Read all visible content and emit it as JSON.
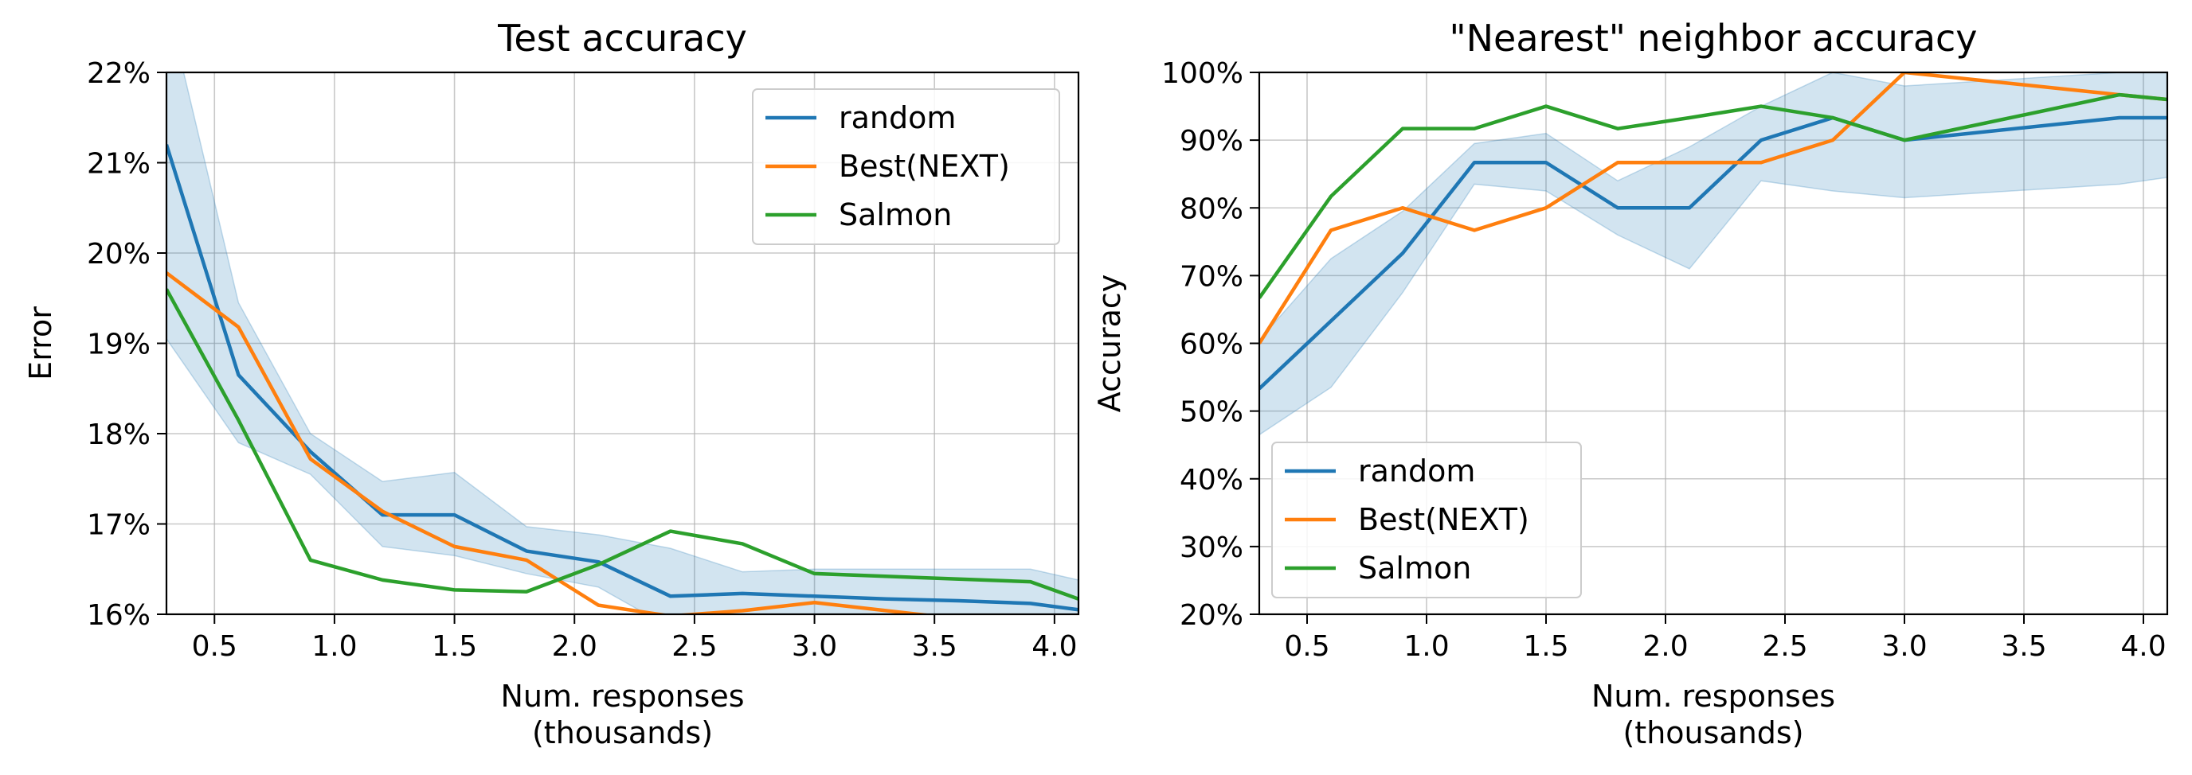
{
  "colors": {
    "random": "#1f77b4",
    "best_next": "#ff7f0e",
    "salmon": "#2ca02c",
    "band": "#1f77b4"
  },
  "chart_data": [
    {
      "type": "line",
      "title": "Test accuracy",
      "xlabel": [
        "Num. responses",
        "(thousands)"
      ],
      "ylabel": "Error",
      "xlim": [
        0.3,
        4.1
      ],
      "ylim": [
        16,
        22
      ],
      "xticks": [
        0.5,
        1.0,
        1.5,
        2.0,
        2.5,
        3.0,
        3.5,
        4.0
      ],
      "xtick_labels": [
        "0.5",
        "1.0",
        "1.5",
        "2.0",
        "2.5",
        "3.0",
        "3.5",
        "4.0"
      ],
      "yticks": [
        16,
        17,
        18,
        19,
        20,
        21,
        22
      ],
      "ytick_labels": [
        "16%",
        "17%",
        "18%",
        "19%",
        "20%",
        "21%",
        "22%"
      ],
      "grid": true,
      "legend_position": "upper-right",
      "legend": [
        "random",
        "Best(NEXT)",
        "Salmon"
      ],
      "series": [
        {
          "name": "random",
          "color": "random",
          "x": [
            0.3,
            0.6,
            0.9,
            1.2,
            1.5,
            1.8,
            2.1,
            2.4,
            2.7,
            3.0,
            3.3,
            3.6,
            3.9,
            4.1
          ],
          "y": [
            21.2,
            18.65,
            17.8,
            17.1,
            17.1,
            16.7,
            16.58,
            16.2,
            16.23,
            16.2,
            16.17,
            16.15,
            16.12,
            16.05
          ],
          "band_lower": [
            19.05,
            17.9,
            17.55,
            16.75,
            16.65,
            16.45,
            16.3,
            15.85,
            15.9,
            15.9,
            15.85,
            15.85,
            15.8,
            15.7
          ],
          "band_upper": [
            22.8,
            19.45,
            18.0,
            17.47,
            17.57,
            16.97,
            16.88,
            16.73,
            16.47,
            16.5,
            16.5,
            16.5,
            16.5,
            16.38
          ]
        },
        {
          "name": "Best(NEXT)",
          "color": "best_next",
          "x": [
            0.3,
            0.6,
            0.9,
            1.2,
            1.5,
            1.8,
            2.1,
            2.4,
            2.7,
            3.0,
            3.5
          ],
          "y": [
            19.78,
            19.18,
            17.72,
            17.14,
            16.75,
            16.6,
            16.1,
            15.98,
            16.04,
            16.13,
            15.98
          ]
        },
        {
          "name": "Salmon",
          "color": "salmon",
          "x": [
            0.3,
            0.6,
            0.9,
            1.2,
            1.5,
            1.8,
            2.1,
            2.4,
            2.7,
            3.0,
            3.9,
            4.1
          ],
          "y": [
            19.6,
            18.15,
            16.6,
            16.38,
            16.27,
            16.25,
            16.55,
            16.92,
            16.78,
            16.45,
            16.36,
            16.17
          ]
        }
      ]
    },
    {
      "type": "line",
      "title": "\"Nearest\" neighbor accuracy",
      "xlabel": [
        "Num. responses",
        "(thousands)"
      ],
      "ylabel": "Accuracy",
      "xlim": [
        0.3,
        4.1
      ],
      "ylim": [
        20,
        100
      ],
      "xticks": [
        0.5,
        1.0,
        1.5,
        2.0,
        2.5,
        3.0,
        3.5,
        4.0
      ],
      "xtick_labels": [
        "0.5",
        "1.0",
        "1.5",
        "2.0",
        "2.5",
        "3.0",
        "3.5",
        "4.0"
      ],
      "yticks": [
        20,
        30,
        40,
        50,
        60,
        70,
        80,
        90,
        100
      ],
      "ytick_labels": [
        "20%",
        "30%",
        "40%",
        "50%",
        "60%",
        "70%",
        "80%",
        "90%",
        "100%"
      ],
      "grid": true,
      "legend_position": "lower-left",
      "legend": [
        "random",
        "Best(NEXT)",
        "Salmon"
      ],
      "series": [
        {
          "name": "random",
          "color": "random",
          "x": [
            0.3,
            0.6,
            0.9,
            1.2,
            1.5,
            1.8,
            2.1,
            2.4,
            2.7,
            3.0,
            3.9,
            4.1
          ],
          "y": [
            53.3,
            63.3,
            73.3,
            86.7,
            86.7,
            80.0,
            80.0,
            90.0,
            93.3,
            90.0,
            93.3,
            93.3
          ],
          "band_lower": [
            46.5,
            53.5,
            67.5,
            83.5,
            82.5,
            76.0,
            71.0,
            84.0,
            82.5,
            81.5,
            83.5,
            84.5
          ],
          "band_upper": [
            60.5,
            72.5,
            79.5,
            89.5,
            91.0,
            84.0,
            89.0,
            95.0,
            100.0,
            98.0,
            100.0,
            100.0
          ]
        },
        {
          "name": "Best(NEXT)",
          "color": "best_next",
          "x": [
            0.3,
            0.6,
            0.9,
            1.2,
            1.5,
            1.8,
            2.1,
            2.4,
            2.7,
            3.0,
            3.9,
            4.1
          ],
          "y": [
            60.0,
            76.7,
            80.0,
            76.7,
            80.0,
            86.7,
            86.7,
            86.7,
            90.0,
            100.0,
            96.7,
            96.0
          ]
        },
        {
          "name": "Salmon",
          "color": "salmon",
          "x": [
            0.3,
            0.6,
            0.9,
            1.2,
            1.5,
            1.8,
            2.1,
            2.4,
            2.7,
            3.0,
            3.9,
            4.1
          ],
          "y": [
            66.7,
            81.7,
            91.7,
            91.7,
            95.0,
            91.7,
            93.3,
            95.0,
            93.3,
            90.0,
            96.7,
            96.0
          ]
        }
      ]
    }
  ]
}
